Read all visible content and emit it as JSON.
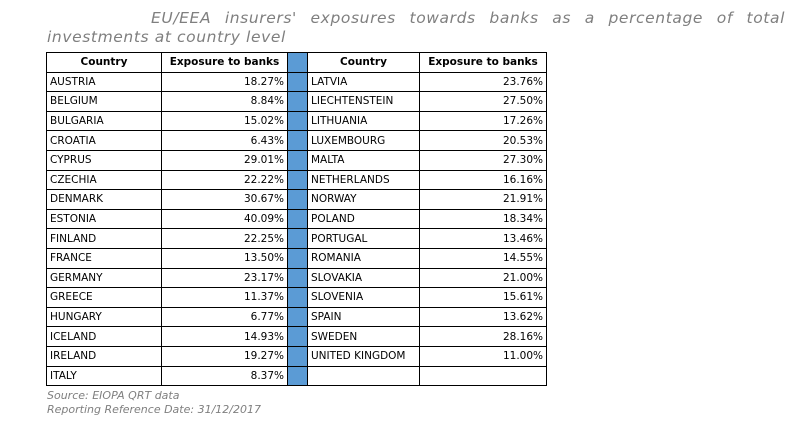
{
  "title": "EU/EEA insurers' exposures towards banks as a percentage of total investments at country level",
  "table": {
    "columns": [
      "Country",
      "Exposure to banks"
    ],
    "left_rows": [
      [
        "AUSTRIA",
        "18.27%"
      ],
      [
        "BELGIUM",
        "8.84%"
      ],
      [
        "BULGARIA",
        "15.02%"
      ],
      [
        "CROATIA",
        "6.43%"
      ],
      [
        "CYPRUS",
        "29.01%"
      ],
      [
        "CZECHIA",
        "22.22%"
      ],
      [
        "DENMARK",
        "30.67%"
      ],
      [
        "ESTONIA",
        "40.09%"
      ],
      [
        "FINLAND",
        "22.25%"
      ],
      [
        "FRANCE",
        "13.50%"
      ],
      [
        "GERMANY",
        "23.17%"
      ],
      [
        "GREECE",
        "11.37%"
      ],
      [
        "HUNGARY",
        "6.77%"
      ],
      [
        "ICELAND",
        "14.93%"
      ],
      [
        "IRELAND",
        "19.27%"
      ],
      [
        "ITALY",
        "8.37%"
      ]
    ],
    "right_rows": [
      [
        "LATVIA",
        "23.76%"
      ],
      [
        "LIECHTENSTEIN",
        "27.50%"
      ],
      [
        "LITHUANIA",
        "17.26%"
      ],
      [
        "LUXEMBOURG",
        "20.53%"
      ],
      [
        "MALTA",
        "27.30%"
      ],
      [
        "NETHERLANDS",
        "16.16%"
      ],
      [
        "NORWAY",
        "21.91%"
      ],
      [
        "POLAND",
        "18.34%"
      ],
      [
        "PORTUGAL",
        "13.46%"
      ],
      [
        "ROMANIA",
        "14.55%"
      ],
      [
        "SLOVAKIA",
        "21.00%"
      ],
      [
        "SLOVENIA",
        "15.61%"
      ],
      [
        "SPAIN",
        "13.62%"
      ],
      [
        "SWEDEN",
        "28.16%"
      ],
      [
        "UNITED KINGDOM",
        "11.00%"
      ]
    ]
  },
  "footnotes": [
    "Source: EIOPA QRT data",
    "Reporting Reference Date: 31/12/2017"
  ]
}
